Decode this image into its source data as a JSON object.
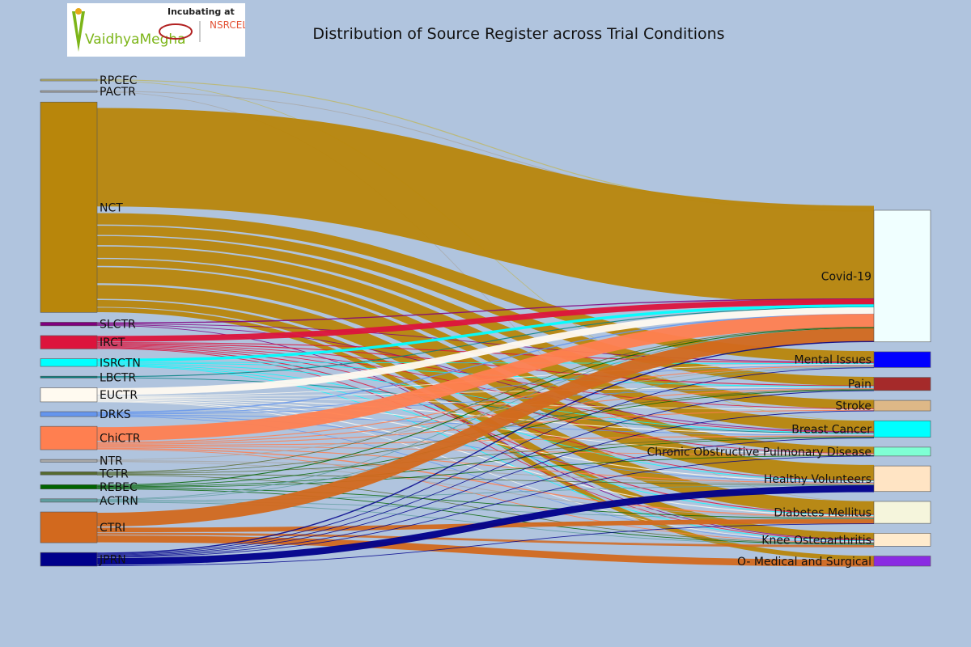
{
  "logo": {
    "brand": "VaidhyaMegha",
    "tagline": "Incubating at",
    "partner": "NSRCEL"
  },
  "chart_data": {
    "type": "sankey",
    "title": "Distribution of Source Register across Trial Conditions",
    "sources": [
      {
        "name": "RPCEC",
        "color": "#bdb76b"
      },
      {
        "name": "PACTR",
        "color": "#a9a9a9"
      },
      {
        "name": "NCT",
        "color": "#b8860b"
      },
      {
        "name": "SLCTR",
        "color": "#800080"
      },
      {
        "name": "IRCT",
        "color": "#dc143c"
      },
      {
        "name": "ISRCTN",
        "color": "#00ffff"
      },
      {
        "name": "LBCTR",
        "color": "#008080"
      },
      {
        "name": "EUCTR",
        "color": "#fffaf0"
      },
      {
        "name": "DRKS",
        "color": "#6495ed"
      },
      {
        "name": "ChiCTR",
        "color": "#ff7f50"
      },
      {
        "name": "NTR",
        "color": "#a9a9a9"
      },
      {
        "name": "TCTR",
        "color": "#556b2f"
      },
      {
        "name": "REBEC",
        "color": "#006400"
      },
      {
        "name": "ACTRN",
        "color": "#5f9ea0"
      },
      {
        "name": "CTRI",
        "color": "#d2691e"
      },
      {
        "name": "JPRN",
        "color": "#00008b"
      }
    ],
    "targets": [
      {
        "name": "Covid-19",
        "color": "#f0ffff"
      },
      {
        "name": "Mental Issues",
        "color": "#0000ff"
      },
      {
        "name": "Pain",
        "color": "#a52a2a"
      },
      {
        "name": "Stroke",
        "color": "#deb887"
      },
      {
        "name": "Breast Cancer",
        "color": "#00ffff"
      },
      {
        "name": "Chronic Obstructive Pulmonary Disease",
        "color": "#7fffd4"
      },
      {
        "name": "Healthy Volunteers",
        "color": "#ffe4c4"
      },
      {
        "name": "Diabetes Mellitus",
        "color": "#f5f5dc"
      },
      {
        "name": "Knee Osteoarthritis",
        "color": "#ffebcd"
      },
      {
        "name": "O- Medical and Surgical",
        "color": "#8a2be2"
      }
    ],
    "links": [
      {
        "source": "RPCEC",
        "target": "Covid-19",
        "value": 0.4
      },
      {
        "source": "RPCEC",
        "target": "Breast Cancer",
        "value": 0.2
      },
      {
        "source": "PACTR",
        "target": "Covid-19",
        "value": 0.3
      },
      {
        "source": "PACTR",
        "target": "Diabetes Mellitus",
        "value": 0.2
      },
      {
        "source": "NCT",
        "target": "Covid-19",
        "value": 43
      },
      {
        "source": "NCT",
        "target": "Mental Issues",
        "value": 5
      },
      {
        "source": "NCT",
        "target": "Pain",
        "value": 4
      },
      {
        "source": "NCT",
        "target": "Stroke",
        "value": 4
      },
      {
        "source": "NCT",
        "target": "Breast Cancer",
        "value": 5
      },
      {
        "source": "NCT",
        "target": "Chronic Obstructive Pulmonary Disease",
        "value": 3
      },
      {
        "source": "NCT",
        "target": "Healthy Volunteers",
        "value": 7
      },
      {
        "source": "NCT",
        "target": "Diabetes Mellitus",
        "value": 6
      },
      {
        "source": "NCT",
        "target": "Knee Osteoarthritis",
        "value": 3
      },
      {
        "source": "NCT",
        "target": "O- Medical and Surgical",
        "value": 2
      },
      {
        "source": "SLCTR",
        "target": "Covid-19",
        "value": 0.5
      },
      {
        "source": "SLCTR",
        "target": "Mental Issues",
        "value": 0.3
      },
      {
        "source": "SLCTR",
        "target": "Breast Cancer",
        "value": 0.3
      },
      {
        "source": "SLCTR",
        "target": "Knee Osteoarthritis",
        "value": 0.3
      },
      {
        "source": "IRCT",
        "target": "Covid-19",
        "value": 2.5
      },
      {
        "source": "IRCT",
        "target": "Mental Issues",
        "value": 0.4
      },
      {
        "source": "IRCT",
        "target": "Pain",
        "value": 0.4
      },
      {
        "source": "IRCT",
        "target": "Stroke",
        "value": 0.3
      },
      {
        "source": "IRCT",
        "target": "Breast Cancer",
        "value": 0.3
      },
      {
        "source": "IRCT",
        "target": "Chronic Obstructive Pulmonary Disease",
        "value": 0.3
      },
      {
        "source": "IRCT",
        "target": "Healthy Volunteers",
        "value": 0.3
      },
      {
        "source": "IRCT",
        "target": "Diabetes Mellitus",
        "value": 0.4
      },
      {
        "source": "IRCT",
        "target": "Knee Osteoarthritis",
        "value": 0.3
      },
      {
        "source": "ISRCTN",
        "target": "Covid-19",
        "value": 1.2
      },
      {
        "source": "ISRCTN",
        "target": "Mental Issues",
        "value": 0.3
      },
      {
        "source": "ISRCTN",
        "target": "Pain",
        "value": 0.3
      },
      {
        "source": "ISRCTN",
        "target": "Breast Cancer",
        "value": 0.3
      },
      {
        "source": "ISRCTN",
        "target": "Healthy Volunteers",
        "value": 0.3
      },
      {
        "source": "ISRCTN",
        "target": "Diabetes Mellitus",
        "value": 0.3
      },
      {
        "source": "ISRCTN",
        "target": "Knee Osteoarthritis",
        "value": 0.3
      },
      {
        "source": "LBCTR",
        "target": "Covid-19",
        "value": 0.4
      },
      {
        "source": "LBCTR",
        "target": "Breast Cancer",
        "value": 0.3
      },
      {
        "source": "EUCTR",
        "target": "Covid-19",
        "value": 3
      },
      {
        "source": "EUCTR",
        "target": "Mental Issues",
        "value": 0.3
      },
      {
        "source": "EUCTR",
        "target": "Pain",
        "value": 0.3
      },
      {
        "source": "EUCTR",
        "target": "Stroke",
        "value": 0.2
      },
      {
        "source": "EUCTR",
        "target": "Breast Cancer",
        "value": 0.4
      },
      {
        "source": "EUCTR",
        "target": "Chronic Obstructive Pulmonary Disease",
        "value": 0.3
      },
      {
        "source": "EUCTR",
        "target": "Healthy Volunteers",
        "value": 0.4
      },
      {
        "source": "EUCTR",
        "target": "Diabetes Mellitus",
        "value": 0.4
      },
      {
        "source": "EUCTR",
        "target": "Knee Osteoarthritis",
        "value": 0.2
      },
      {
        "source": "DRKS",
        "target": "Covid-19",
        "value": 0.5
      },
      {
        "source": "DRKS",
        "target": "Mental Issues",
        "value": 0.3
      },
      {
        "source": "DRKS",
        "target": "Pain",
        "value": 0.3
      },
      {
        "source": "DRKS",
        "target": "Breast Cancer",
        "value": 0.3
      },
      {
        "source": "DRKS",
        "target": "Healthy Volunteers",
        "value": 0.3
      },
      {
        "source": "DRKS",
        "target": "Knee Osteoarthritis",
        "value": 0.2
      },
      {
        "source": "ChiCTR",
        "target": "Covid-19",
        "value": 6
      },
      {
        "source": "ChiCTR",
        "target": "Mental Issues",
        "value": 0.4
      },
      {
        "source": "ChiCTR",
        "target": "Pain",
        "value": 0.4
      },
      {
        "source": "ChiCTR",
        "target": "Stroke",
        "value": 0.4
      },
      {
        "source": "ChiCTR",
        "target": "Breast Cancer",
        "value": 0.4
      },
      {
        "source": "ChiCTR",
        "target": "Chronic Obstructive Pulmonary Disease",
        "value": 0.3
      },
      {
        "source": "ChiCTR",
        "target": "Healthy Volunteers",
        "value": 0.4
      },
      {
        "source": "ChiCTR",
        "target": "Diabetes Mellitus",
        "value": 0.5
      },
      {
        "source": "ChiCTR",
        "target": "Knee Osteoarthritis",
        "value": 0.3
      },
      {
        "source": "NTR",
        "target": "Mental Issues",
        "value": 0.3
      },
      {
        "source": "NTR",
        "target": "Healthy Volunteers",
        "value": 0.4
      },
      {
        "source": "NTR",
        "target": "Diabetes Mellitus",
        "value": 0.3
      },
      {
        "source": "TCTR",
        "target": "Covid-19",
        "value": 0.3
      },
      {
        "source": "TCTR",
        "target": "Pain",
        "value": 0.2
      },
      {
        "source": "TCTR",
        "target": "Breast Cancer",
        "value": 0.2
      },
      {
        "source": "TCTR",
        "target": "Healthy Volunteers",
        "value": 0.3
      },
      {
        "source": "TCTR",
        "target": "Knee Osteoarthritis",
        "value": 0.2
      },
      {
        "source": "REBEC",
        "target": "Covid-19",
        "value": 0.4
      },
      {
        "source": "REBEC",
        "target": "Pain",
        "value": 0.3
      },
      {
        "source": "REBEC",
        "target": "Breast Cancer",
        "value": 0.2
      },
      {
        "source": "REBEC",
        "target": "Chronic Obstructive Pulmonary Disease",
        "value": 0.2
      },
      {
        "source": "REBEC",
        "target": "Diabetes Mellitus",
        "value": 0.3
      },
      {
        "source": "REBEC",
        "target": "Knee Osteoarthritis",
        "value": 0.3
      },
      {
        "source": "ACTRN",
        "target": "Covid-19",
        "value": 0.3
      },
      {
        "source": "ACTRN",
        "target": "Mental Issues",
        "value": 0.2
      },
      {
        "source": "ACTRN",
        "target": "Healthy Volunteers",
        "value": 0.3
      },
      {
        "source": "ACTRN",
        "target": "Diabetes Mellitus",
        "value": 0.2
      },
      {
        "source": "ACTRN",
        "target": "Knee Osteoarthritis",
        "value": 0.3
      },
      {
        "source": "CTRI",
        "target": "Covid-19",
        "value": 6
      },
      {
        "source": "CTRI",
        "target": "Diabetes Mellitus",
        "value": 2
      },
      {
        "source": "CTRI",
        "target": "Knee Osteoarthritis",
        "value": 1
      },
      {
        "source": "CTRI",
        "target": "O- Medical and Surgical",
        "value": 3
      },
      {
        "source": "JPRN",
        "target": "Covid-19",
        "value": 0.5
      },
      {
        "source": "JPRN",
        "target": "Mental Issues",
        "value": 0.3
      },
      {
        "source": "JPRN",
        "target": "Pain",
        "value": 0.3
      },
      {
        "source": "JPRN",
        "target": "Stroke",
        "value": 0.3
      },
      {
        "source": "JPRN",
        "target": "Breast Cancer",
        "value": 0.3
      },
      {
        "source": "JPRN",
        "target": "Chronic Obstructive Pulmonary Disease",
        "value": 0.3
      },
      {
        "source": "JPRN",
        "target": "Healthy Volunteers",
        "value": 3
      },
      {
        "source": "JPRN",
        "target": "Diabetes Mellitus",
        "value": 0.3
      }
    ]
  }
}
